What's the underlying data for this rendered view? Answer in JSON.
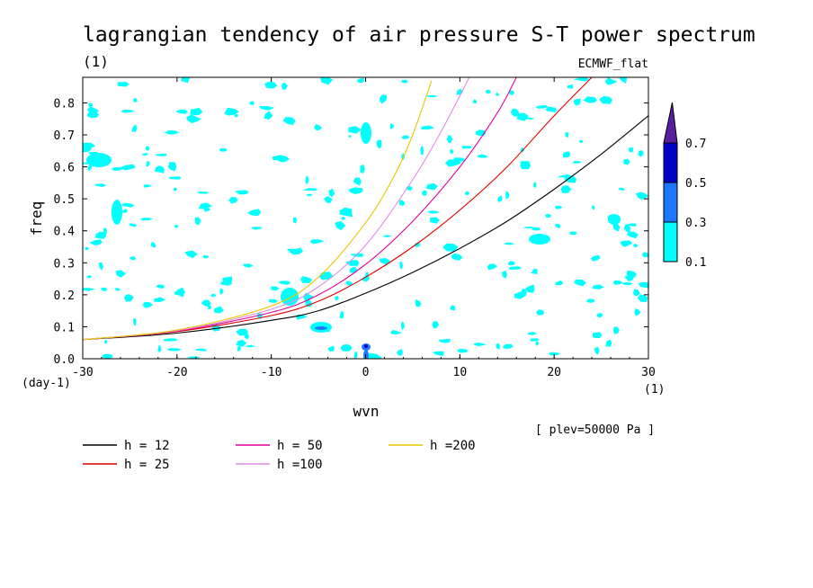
{
  "chart_data": {
    "type": "contour",
    "title": "lagrangian tendency of air pressure S-T power spectrum",
    "units_label": "(1)",
    "dataset": "ECMWF_flat",
    "xlabel": "wvn",
    "ylabel": "freq",
    "x_unit": "(1)",
    "y_unit": "(day-1)",
    "xlim": [
      -30,
      30
    ],
    "ylim": [
      0,
      0.88
    ],
    "xticks": [
      -30,
      -20,
      -10,
      0,
      10,
      20,
      30
    ],
    "xtick_labels": [
      "-30",
      "-20",
      "-10",
      "0",
      "10",
      "20",
      "30"
    ],
    "yticks": [
      0.0,
      0.1,
      0.2,
      0.3,
      0.4,
      0.5,
      0.6,
      0.7,
      0.8
    ],
    "ytick_labels": [
      "0.0",
      "0.1",
      "0.2",
      "0.3",
      "0.4",
      "0.5",
      "0.6",
      "0.7",
      "0.8"
    ],
    "level_note": "[ plev=50000 Pa ]",
    "colorbar": {
      "levels": [
        "0.1",
        "0.3",
        "0.5",
        "0.7"
      ],
      "colors": [
        "#00ffff",
        "#1e78ff",
        "#0000c8",
        "#5a1ea0"
      ]
    },
    "series": [
      {
        "name": "h = 12",
        "color": "#000000",
        "x": [
          -30,
          -20,
          -10,
          -5,
          0,
          5,
          10,
          15,
          20,
          25,
          30
        ],
        "y": [
          0.06,
          0.08,
          0.12,
          0.15,
          0.205,
          0.27,
          0.345,
          0.43,
          0.53,
          0.64,
          0.76
        ]
      },
      {
        "name": "h = 25",
        "color": "#e00000",
        "x": [
          -30,
          -20,
          -10,
          -5,
          0,
          5,
          10,
          15,
          20,
          24
        ],
        "y": [
          0.06,
          0.085,
          0.135,
          0.18,
          0.255,
          0.35,
          0.465,
          0.6,
          0.76,
          0.88
        ]
      },
      {
        "name": "h = 50",
        "color": "#e0009a",
        "x": [
          -30,
          -20,
          -10,
          -5,
          0,
          5,
          10,
          14,
          16
        ],
        "y": [
          0.06,
          0.087,
          0.145,
          0.2,
          0.295,
          0.43,
          0.6,
          0.77,
          0.88
        ]
      },
      {
        "name": "h =100",
        "color": "#e08ce6",
        "x": [
          -30,
          -20,
          -10,
          -5,
          0,
          5,
          8,
          11
        ],
        "y": [
          0.06,
          0.088,
          0.155,
          0.225,
          0.355,
          0.56,
          0.71,
          0.88
        ]
      },
      {
        "name": "h =200",
        "color": "#e6c800",
        "x": [
          -30,
          -20,
          -10,
          -5,
          0,
          3,
          5,
          7
        ],
        "y": [
          0.06,
          0.09,
          0.165,
          0.255,
          0.425,
          0.57,
          0.7,
          0.87
        ]
      }
    ]
  }
}
